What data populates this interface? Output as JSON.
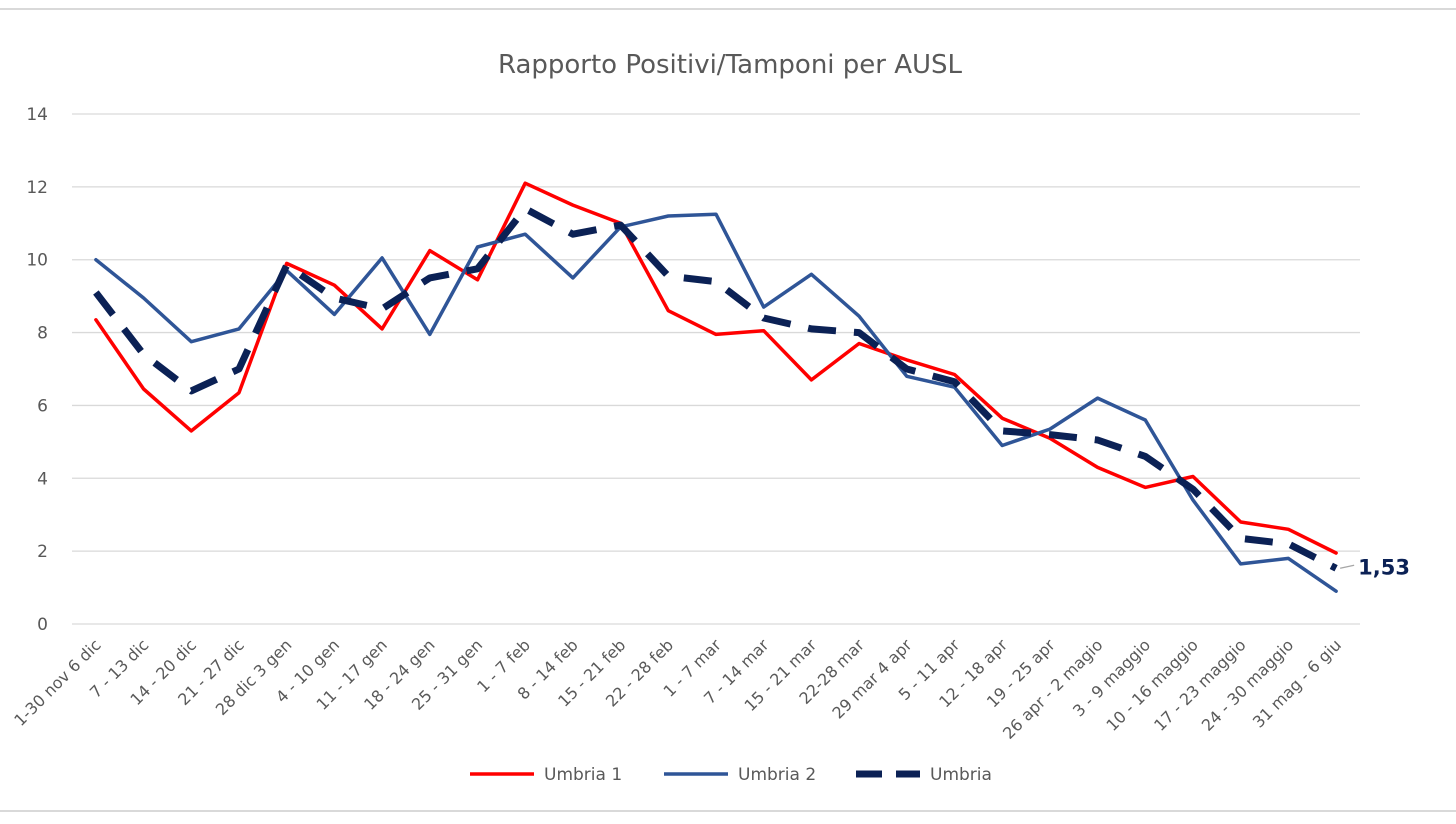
{
  "chart_data": {
    "type": "line",
    "title": "Rapporto Positivi/Tamponi per AUSL",
    "xlabel": "",
    "ylabel": "",
    "ylim": [
      0,
      14
    ],
    "yticks": [
      "0",
      "2",
      "4",
      "6",
      "8",
      "10",
      "12",
      "14"
    ],
    "grid": "horizontal",
    "legend_position": "bottom",
    "categories": [
      "1-30 nov 6 dic",
      "7 - 13 dic",
      "14 - 20 dic",
      "21 - 27 dic",
      "28 dic 3 gen",
      "4 - 10 gen",
      "11 - 17 gen",
      "18 - 24 gen",
      "25 - 31 gen",
      "1 - 7 feb",
      "8 - 14 feb",
      "15 - 21 feb",
      "22 - 28 feb",
      "1 - 7 mar",
      "7 - 14 mar",
      "15 - 21 mar",
      "22-28 mar",
      "29 mar 4 apr",
      "5 - 11 apr",
      "12 - 18 apr",
      "19 - 25 apr",
      "26 apr - 2 magio",
      "3 - 9 maggio",
      "10 - 16 maggio",
      "17 - 23 maggio",
      "24 - 30 maggio",
      "31 mag - 6 giu"
    ],
    "series": [
      {
        "name": "Umbria 1",
        "color": "#ff0000",
        "style": "solid",
        "values": [
          8.35,
          6.45,
          5.3,
          6.35,
          9.9,
          9.3,
          8.1,
          10.25,
          9.45,
          12.1,
          11.5,
          11.0,
          8.6,
          7.95,
          8.05,
          6.7,
          7.7,
          7.25,
          6.85,
          5.65,
          5.1,
          4.3,
          3.75,
          4.05,
          2.8,
          2.6,
          1.95
        ]
      },
      {
        "name": "Umbria 2",
        "color": "#2f5597",
        "style": "solid",
        "values": [
          10.0,
          8.95,
          7.75,
          8.1,
          9.7,
          8.5,
          10.05,
          7.95,
          10.35,
          10.7,
          9.5,
          10.9,
          11.2,
          11.25,
          8.7,
          9.6,
          8.45,
          6.8,
          6.5,
          4.9,
          5.35,
          6.2,
          5.6,
          3.4,
          1.65,
          1.8,
          0.9
        ]
      },
      {
        "name": "Umbria",
        "color": "#0b2155",
        "style": "dashed",
        "values": [
          9.1,
          7.4,
          6.4,
          7.0,
          9.85,
          8.95,
          8.65,
          9.5,
          9.75,
          11.4,
          10.7,
          10.95,
          9.55,
          9.4,
          8.4,
          8.1,
          8.0,
          7.0,
          6.65,
          5.3,
          5.2,
          5.05,
          4.6,
          3.7,
          2.35,
          2.2,
          1.53
        ]
      }
    ],
    "annotations": [
      {
        "text": "1,53",
        "series": "Umbria",
        "point": "31 mag - 6 giu",
        "color": "#0b2155"
      }
    ]
  }
}
